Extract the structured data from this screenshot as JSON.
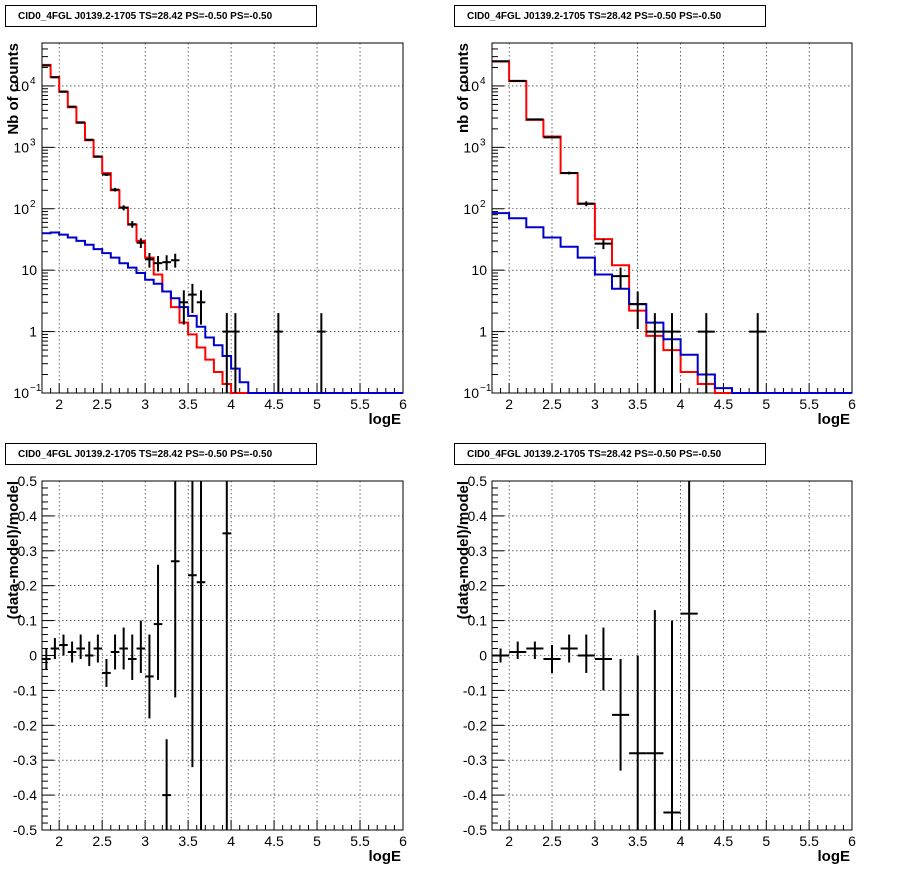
{
  "chart_data": [
    {
      "type": "histogram-log",
      "title": "CID0_4FGL J0139.2-1705 TS=28.42 PS=-0.50 PS=-0.50",
      "xlabel": "logE",
      "ylabel": "Nb of counts",
      "xlim": [
        1.8,
        6.0
      ],
      "ylim": [
        0.1,
        50000
      ],
      "log_y": true,
      "grid": true,
      "x_ticks": [
        "2",
        "2.5",
        "3",
        "3.5",
        "4",
        "4.5",
        "5",
        "5.5",
        "6"
      ],
      "y_ticks": [
        "10^{-1}",
        "1",
        "10",
        "10^{2}",
        "10^{3}",
        "10^{4}"
      ],
      "bin_width": 0.1,
      "bins_start": 1.8,
      "series": [
        {
          "color": "#ff0000",
          "values": [
            22000,
            14000,
            8000,
            4500,
            2500,
            1300,
            700,
            380,
            200,
            105,
            55,
            30,
            16,
            8.5,
            4.5,
            2.5,
            1.4,
            0.9,
            0.55,
            0.35,
            0.22,
            0.14,
            0.1,
            0.1,
            0.1,
            0.1,
            0.1,
            0.1,
            0.1,
            0.1,
            0.1,
            0.1,
            0.1,
            0.1,
            0.1,
            0.1,
            0.1,
            0.1,
            0.1,
            0.1,
            0.1,
            0.1
          ]
        },
        {
          "color": "#0000cc",
          "values": [
            40,
            41,
            38,
            34,
            30,
            26,
            22,
            19,
            16,
            13,
            11,
            9,
            7,
            6,
            4.5,
            3.5,
            2.5,
            1.8,
            1.2,
            0.8,
            0.6,
            0.4,
            0.25,
            0.15,
            0.1,
            0.1,
            0.1,
            0.1,
            0.1,
            0.1,
            0.1,
            0.1,
            0.1,
            0.1,
            0.1,
            0.1,
            0.1,
            0.1,
            0.1,
            0.1,
            0.1,
            0.1
          ]
        }
      ],
      "points": [
        {
          "x": 1.85,
          "y": 21500,
          "xerr": 0.05,
          "ylo": 21300,
          "yhi": 21700
        },
        {
          "x": 1.95,
          "y": 13800,
          "xerr": 0.05,
          "ylo": 13680,
          "yhi": 13920
        },
        {
          "x": 2.05,
          "y": 8100,
          "xerr": 0.05,
          "ylo": 8010,
          "yhi": 8190
        },
        {
          "x": 2.15,
          "y": 4600,
          "xerr": 0.05,
          "ylo": 4530,
          "yhi": 4670
        },
        {
          "x": 2.25,
          "y": 2550,
          "xerr": 0.05,
          "ylo": 2500,
          "yhi": 2600
        },
        {
          "x": 2.35,
          "y": 1330,
          "xerr": 0.05,
          "ylo": 1295,
          "yhi": 1365
        },
        {
          "x": 2.45,
          "y": 710,
          "xerr": 0.05,
          "ylo": 683,
          "yhi": 737
        },
        {
          "x": 2.55,
          "y": 360,
          "xerr": 0.05,
          "ylo": 341,
          "yhi": 379
        },
        {
          "x": 2.65,
          "y": 205,
          "xerr": 0.05,
          "ylo": 191,
          "yhi": 219
        },
        {
          "x": 2.75,
          "y": 104,
          "xerr": 0.05,
          "ylo": 94,
          "yhi": 114
        },
        {
          "x": 2.85,
          "y": 56,
          "xerr": 0.05,
          "ylo": 49,
          "yhi": 63
        },
        {
          "x": 2.95,
          "y": 28,
          "xerr": 0.05,
          "ylo": 23,
          "yhi": 33
        },
        {
          "x": 3.05,
          "y": 15,
          "xerr": 0.05,
          "ylo": 11,
          "yhi": 19
        },
        {
          "x": 3.15,
          "y": 13,
          "xerr": 0.05,
          "ylo": 9.5,
          "yhi": 17
        },
        {
          "x": 3.25,
          "y": 13.5,
          "xerr": 0.05,
          "ylo": 10,
          "yhi": 17.5
        },
        {
          "x": 3.35,
          "y": 14.5,
          "xerr": 0.05,
          "ylo": 11,
          "yhi": 18.5
        },
        {
          "x": 3.45,
          "y": 3,
          "xerr": 0.05,
          "ylo": 1.3,
          "yhi": 4.7
        },
        {
          "x": 3.55,
          "y": 4,
          "xerr": 0.05,
          "ylo": 2,
          "yhi": 6
        },
        {
          "x": 3.65,
          "y": 3,
          "xerr": 0.05,
          "ylo": 1.3,
          "yhi": 4.7
        },
        {
          "x": 3.95,
          "y": 1,
          "xerr": 0.05,
          "ylo": 0.1,
          "yhi": 2
        },
        {
          "x": 4.05,
          "y": 1,
          "xerr": 0.05,
          "ylo": 0.1,
          "yhi": 2
        },
        {
          "x": 4.55,
          "y": 1,
          "xerr": 0.05,
          "ylo": 0.1,
          "yhi": 2
        },
        {
          "x": 5.05,
          "y": 1,
          "xerr": 0.05,
          "ylo": 0.1,
          "yhi": 2
        }
      ]
    },
    {
      "type": "histogram-log",
      "title": "CID0_4FGL J0139.2-1705 TS=28.42 PS=-0.50 PS=-0.50",
      "xlabel": "logE",
      "ylabel": "nb of counts",
      "xlim": [
        1.8,
        6.0
      ],
      "ylim": [
        0.1,
        50000
      ],
      "log_y": true,
      "grid": true,
      "x_ticks": [
        "2",
        "2.5",
        "3",
        "3.5",
        "4",
        "4.5",
        "5",
        "5.5",
        "6"
      ],
      "y_ticks": [
        "10^{-1}",
        "1",
        "10",
        "10^{2}",
        "10^{3}",
        "10^{4}"
      ],
      "bin_width": 0.2,
      "bins_start": 1.8,
      "series": [
        {
          "color": "#ff0000",
          "values": [
            25000,
            12000,
            2800,
            1500,
            380,
            120,
            32,
            12,
            2.2,
            0.85,
            0.5,
            0.22,
            0.14,
            0.1,
            0.1,
            0.1,
            0.1,
            0.1,
            0.1,
            0.1,
            0.1
          ]
        },
        {
          "color": "#0000cc",
          "values": [
            85,
            70,
            50,
            34,
            24,
            16,
            8.5,
            5,
            2.8,
            1.4,
            0.75,
            0.42,
            0.2,
            0.12,
            0.1,
            0.1,
            0.1,
            0.1,
            0.1,
            0.1,
            0.1
          ]
        }
      ],
      "points": [
        {
          "x": 1.9,
          "y": 25200,
          "xerr": 0.1,
          "ylo": 25000,
          "yhi": 25400
        },
        {
          "x": 2.1,
          "y": 12100,
          "xerr": 0.1,
          "ylo": 11990,
          "yhi": 12210
        },
        {
          "x": 2.3,
          "y": 2850,
          "xerr": 0.1,
          "ylo": 2797,
          "yhi": 2903
        },
        {
          "x": 2.5,
          "y": 1450,
          "xerr": 0.1,
          "ylo": 1412,
          "yhi": 1488
        },
        {
          "x": 2.7,
          "y": 382,
          "xerr": 0.1,
          "ylo": 362,
          "yhi": 402
        },
        {
          "x": 2.9,
          "y": 121,
          "xerr": 0.1,
          "ylo": 110,
          "yhi": 132
        },
        {
          "x": 3.1,
          "y": 27,
          "xerr": 0.1,
          "ylo": 22,
          "yhi": 32
        },
        {
          "x": 3.3,
          "y": 8,
          "xerr": 0.1,
          "ylo": 5,
          "yhi": 11
        },
        {
          "x": 3.5,
          "y": 2.8,
          "xerr": 0.1,
          "ylo": 1.1,
          "yhi": 4.5
        },
        {
          "x": 3.7,
          "y": 1,
          "xerr": 0.1,
          "ylo": 0.1,
          "yhi": 2
        },
        {
          "x": 3.9,
          "y": 1,
          "xerr": 0.1,
          "ylo": 0.1,
          "yhi": 2
        },
        {
          "x": 4.3,
          "y": 1,
          "xerr": 0.1,
          "ylo": 0.1,
          "yhi": 2
        },
        {
          "x": 4.9,
          "y": 1,
          "xerr": 0.1,
          "ylo": 0.1,
          "yhi": 2
        }
      ]
    },
    {
      "type": "scatter-errorbars",
      "title": "CID0_4FGL J0139.2-1705 TS=28.42 PS=-0.50 PS=-0.50",
      "xlabel": "logE",
      "ylabel": "(data-model)/model",
      "xlim": [
        1.8,
        6.0
      ],
      "ylim": [
        -0.5,
        0.5
      ],
      "grid": true,
      "x_ticks": [
        "2",
        "2.5",
        "3",
        "3.5",
        "4",
        "4.5",
        "5",
        "5.5",
        "6"
      ],
      "y_ticks": [
        "-0.5",
        "-0.4",
        "-0.3",
        "-0.2",
        "-0.1",
        "0",
        "0.1",
        "0.2",
        "0.3",
        "0.4",
        "0.5"
      ],
      "points": [
        {
          "x": 1.85,
          "y": -0.01,
          "xerr": 0.05,
          "ylo": -0.04,
          "yhi": 0.02
        },
        {
          "x": 1.95,
          "y": 0.02,
          "xerr": 0.05,
          "ylo": -0.01,
          "yhi": 0.05
        },
        {
          "x": 2.05,
          "y": 0.03,
          "xerr": 0.05,
          "ylo": 0.0,
          "yhi": 0.06
        },
        {
          "x": 2.15,
          "y": 0.01,
          "xerr": 0.05,
          "ylo": -0.02,
          "yhi": 0.04
        },
        {
          "x": 2.25,
          "y": 0.02,
          "xerr": 0.05,
          "ylo": -0.01,
          "yhi": 0.06
        },
        {
          "x": 2.35,
          "y": 0.0,
          "xerr": 0.05,
          "ylo": -0.03,
          "yhi": 0.04
        },
        {
          "x": 2.45,
          "y": 0.02,
          "xerr": 0.05,
          "ylo": -0.02,
          "yhi": 0.06
        },
        {
          "x": 2.55,
          "y": -0.05,
          "xerr": 0.05,
          "ylo": -0.09,
          "yhi": -0.01
        },
        {
          "x": 2.65,
          "y": 0.01,
          "xerr": 0.05,
          "ylo": -0.04,
          "yhi": 0.06
        },
        {
          "x": 2.75,
          "y": 0.02,
          "xerr": 0.05,
          "ylo": -0.04,
          "yhi": 0.08
        },
        {
          "x": 2.85,
          "y": -0.01,
          "xerr": 0.05,
          "ylo": -0.07,
          "yhi": 0.06
        },
        {
          "x": 2.95,
          "y": 0.02,
          "xerr": 0.05,
          "ylo": -0.05,
          "yhi": 0.1
        },
        {
          "x": 3.05,
          "y": -0.06,
          "xerr": 0.05,
          "ylo": -0.18,
          "yhi": 0.06
        },
        {
          "x": 3.15,
          "y": 0.09,
          "xerr": 0.05,
          "ylo": -0.07,
          "yhi": 0.26
        },
        {
          "x": 3.25,
          "y": -0.4,
          "xerr": 0.05,
          "ylo": -0.5,
          "yhi": -0.24
        },
        {
          "x": 3.35,
          "y": 0.27,
          "xerr": 0.05,
          "ylo": -0.12,
          "yhi": 0.5
        },
        {
          "x": 3.55,
          "y": 0.23,
          "xerr": 0.05,
          "ylo": -0.32,
          "yhi": 0.5
        },
        {
          "x": 3.65,
          "y": 0.21,
          "xerr": 0.05,
          "ylo": -0.5,
          "yhi": 0.5
        },
        {
          "x": 3.95,
          "y": 0.35,
          "xerr": 0.05,
          "ylo": -0.5,
          "yhi": 0.5
        }
      ]
    },
    {
      "type": "scatter-errorbars",
      "title": "CID0_4FGL J0139.2-1705 TS=28.42 PS=-0.50 PS=-0.50",
      "xlabel": "logE",
      "ylabel": "(data-model)/model",
      "xlim": [
        1.8,
        6.0
      ],
      "ylim": [
        -0.5,
        0.5
      ],
      "grid": true,
      "x_ticks": [
        "2",
        "2.5",
        "3",
        "3.5",
        "4",
        "4.5",
        "5",
        "5.5",
        "6"
      ],
      "y_ticks": [
        "-0.5",
        "-0.4",
        "-0.3",
        "-0.2",
        "-0.1",
        "0",
        "0.1",
        "0.2",
        "0.3",
        "0.4",
        "0.5"
      ],
      "points": [
        {
          "x": 1.9,
          "y": 0.0,
          "xerr": 0.1,
          "ylo": -0.02,
          "yhi": 0.02
        },
        {
          "x": 2.1,
          "y": 0.01,
          "xerr": 0.1,
          "ylo": -0.01,
          "yhi": 0.04
        },
        {
          "x": 2.3,
          "y": 0.02,
          "xerr": 0.1,
          "ylo": -0.01,
          "yhi": 0.04
        },
        {
          "x": 2.5,
          "y": -0.01,
          "xerr": 0.1,
          "ylo": -0.05,
          "yhi": 0.03
        },
        {
          "x": 2.7,
          "y": 0.02,
          "xerr": 0.1,
          "ylo": -0.02,
          "yhi": 0.06
        },
        {
          "x": 2.9,
          "y": 0.0,
          "xerr": 0.1,
          "ylo": -0.05,
          "yhi": 0.06
        },
        {
          "x": 3.1,
          "y": -0.01,
          "xerr": 0.1,
          "ylo": -0.1,
          "yhi": 0.08
        },
        {
          "x": 3.3,
          "y": -0.17,
          "xerr": 0.1,
          "ylo": -0.33,
          "yhi": -0.01
        },
        {
          "x": 3.5,
          "y": -0.28,
          "xerr": 0.1,
          "ylo": -0.5,
          "yhi": 0.0
        },
        {
          "x": 3.7,
          "y": -0.28,
          "xerr": 0.1,
          "ylo": -0.5,
          "yhi": 0.13
        },
        {
          "x": 3.9,
          "y": -0.45,
          "xerr": 0.1,
          "ylo": -0.5,
          "yhi": 0.1
        },
        {
          "x": 4.1,
          "y": 0.12,
          "xerr": 0.1,
          "ylo": -0.5,
          "yhi": 0.5
        }
      ]
    }
  ]
}
